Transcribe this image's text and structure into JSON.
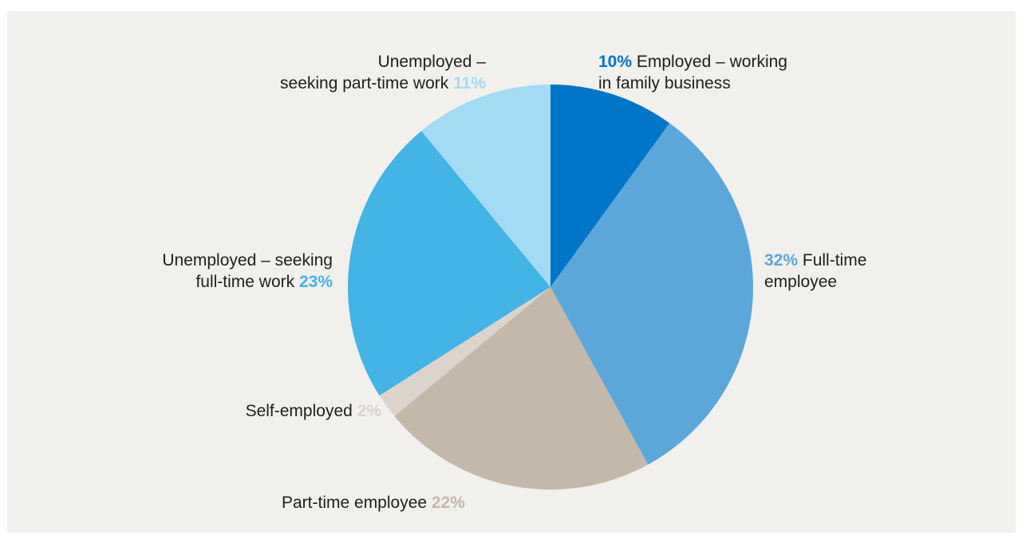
{
  "chart_data": {
    "type": "pie",
    "slices": [
      {
        "label": "Employed – working in family business",
        "value": 10,
        "value_label": "10%",
        "color": "#0076c8"
      },
      {
        "label": "Full-time employee",
        "value": 32,
        "value_label": "32%",
        "color": "#5ba7da"
      },
      {
        "label": "Part-time employee",
        "value": 22,
        "value_label": "22%",
        "color": "#c4b8ab"
      },
      {
        "label": "Self-employed",
        "value": 2,
        "value_label": "2%",
        "color": "#dcd4cb"
      },
      {
        "label": "Unemployed – seeking full-time work",
        "value": 23,
        "value_label": "23%",
        "color": "#42b4e6"
      },
      {
        "label": "Unemployed – seeking part-time work",
        "value": 11,
        "value_label": "11%",
        "color": "#a4dbf4"
      }
    ],
    "labels": {
      "family": {
        "line1": "Employed – working",
        "line2": "in family business"
      },
      "fulltime": {
        "line1": "Full-time",
        "line2": "employee"
      },
      "parttime": {
        "line1": "Part-time employee"
      },
      "self": {
        "line1": "Self-employed"
      },
      "seek_full": {
        "line1": "Unemployed – seeking",
        "line2": "full-time work"
      },
      "seek_part": {
        "line1": "Unemployed –",
        "line2": "seeking part-time work"
      }
    },
    "start": "12 o'clock",
    "direction": "clockwise"
  }
}
